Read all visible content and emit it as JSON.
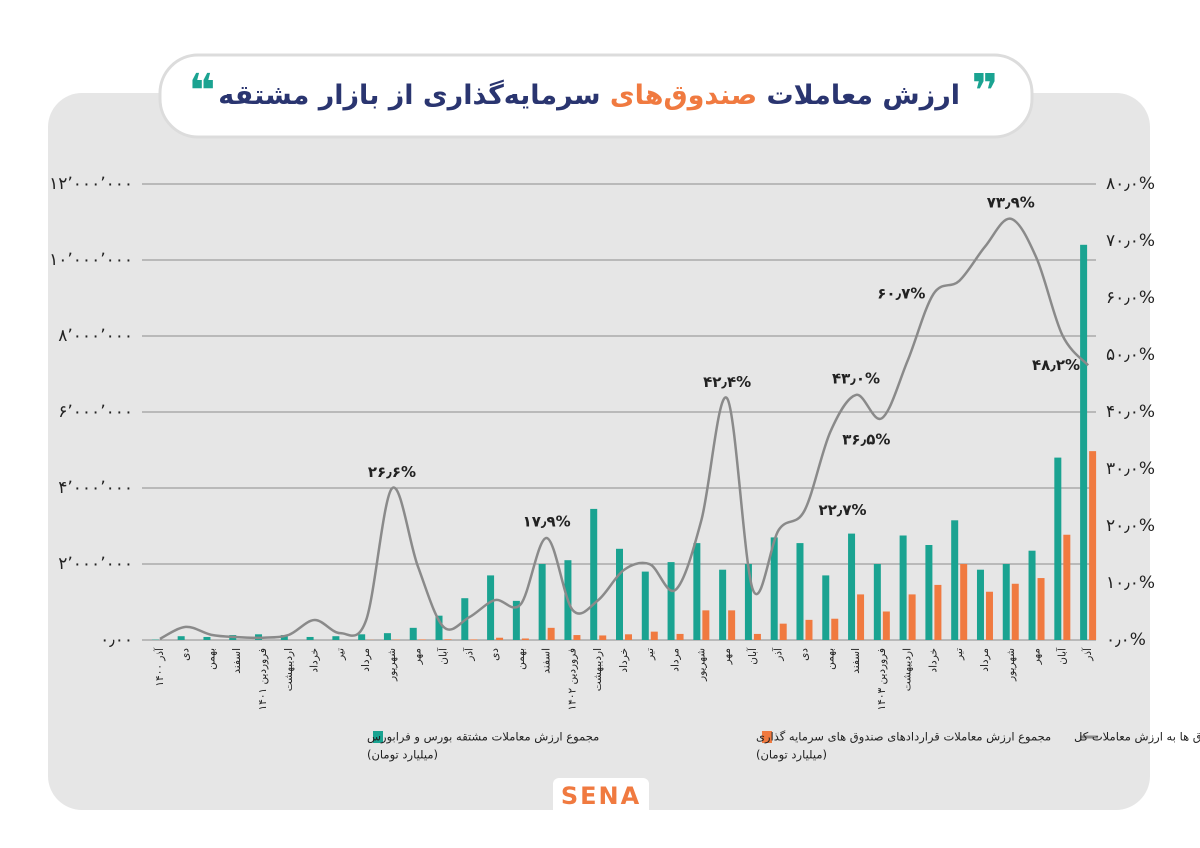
{
  "header": {
    "title": "ارزش معاملات",
    "title_highlight": "صندوق‌های",
    "title_rest": "سرمایه‌گذاری از بازار مشتقه"
  },
  "logo": {
    "text": "SENA"
  },
  "chart_data": {
    "type": "bar-line",
    "categories": [
      "آذر ۱۴۰۰",
      "دی",
      "بهمن",
      "اسفند",
      "فروردین ۱۴۰۱",
      "اردیبهشت",
      "خرداد",
      "تیر",
      "مرداد",
      "شهریور",
      "مهر",
      "آبان",
      "آذر",
      "دی",
      "بهمن",
      "اسفند",
      "فروردین ۱۴۰۲",
      "اردیبهشت",
      "خرداد",
      "تیر",
      "مرداد",
      "شهریور",
      "مهر",
      "آبان",
      "آذر",
      "دی",
      "بهمن",
      "اسفند",
      "فروردین ۱۴۰۳",
      "اردیبهشت",
      "خرداد",
      "تیر",
      "مرداد",
      "شهریور",
      "مهر",
      "آبان",
      "آذر"
    ],
    "series": [
      {
        "name": "مجموع ارزش معاملات مشتقه بورس و فرابورس",
        "unit": "(میلیارد تومان)",
        "color": "#1aa391",
        "values": [
          10000,
          100000,
          80000,
          130000,
          150000,
          130000,
          80000,
          100000,
          150000,
          180000,
          320000,
          640000,
          1100000,
          1700000,
          1030000,
          2000000,
          2100000,
          3450000,
          2400000,
          1800000,
          2050000,
          2550000,
          1850000,
          2000000,
          2700000,
          2550000,
          1700000,
          2800000,
          2000000,
          2750000,
          2500000,
          3150000,
          1850000,
          2000000,
          2350000,
          4800000,
          10400000
        ]
      },
      {
        "name": "مجموع ارزش معاملات قراردادهای صندوق های سرمایه گذاری",
        "unit": "(میلیارد تومان)",
        "color": "#f07a40",
        "values": [
          0,
          0,
          0,
          0,
          0,
          0,
          0,
          0,
          5000,
          10000,
          15000,
          20000,
          15000,
          60000,
          40000,
          320000,
          130000,
          120000,
          150000,
          220000,
          160000,
          780000,
          780000,
          160000,
          430000,
          530000,
          560000,
          1200000,
          750000,
          1200000,
          1450000,
          2000000,
          1270000,
          1480000,
          1630000,
          2770000,
          4970000
        ]
      },
      {
        "name": "نسبت ارزش معاملات صندوق ها به ارزش معاملات کل",
        "color": "#8a8a8a",
        "axis": "y2",
        "values": [
          0.2,
          2.3,
          0.9,
          0.5,
          0.4,
          0.9,
          3.5,
          1.2,
          3.5,
          26.6,
          13,
          2.3,
          4,
          7,
          6.3,
          17.9,
          5.3,
          7,
          12.3,
          13.3,
          8.8,
          21,
          42.4,
          8.8,
          19.3,
          22.7,
          36.5,
          43,
          38.9,
          49,
          60.7,
          63,
          69,
          73.9,
          67,
          53.5,
          48.2
        ],
        "value_labels": [
          null,
          null,
          null,
          null,
          null,
          null,
          null,
          null,
          null,
          "۲۶٫۶%",
          null,
          null,
          null,
          null,
          null,
          "۱۷٫۹%",
          null,
          null,
          null,
          null,
          null,
          null,
          "۴۲٫۴%",
          null,
          null,
          "۲۲٫۷%",
          "۳۶٫۵%",
          "۴۳٫۰%",
          null,
          null,
          "۶۰٫۷%",
          null,
          null,
          "۷۳٫۹%",
          null,
          null,
          "۴۸٫۲%"
        ]
      }
    ],
    "ylim": [
      0,
      12000000
    ],
    "yticks": [
      {
        "value": 0,
        "label": "۰٫۰۰"
      },
      {
        "value": 2000000,
        "label": "۲٬۰۰۰٬۰۰۰"
      },
      {
        "value": 4000000,
        "label": "۴٬۰۰۰٬۰۰۰"
      },
      {
        "value": 6000000,
        "label": "۶٬۰۰۰٬۰۰۰"
      },
      {
        "value": 8000000,
        "label": "۸٬۰۰۰٬۰۰۰"
      },
      {
        "value": 10000000,
        "label": "۱۰٬۰۰۰٬۰۰۰"
      },
      {
        "value": 12000000,
        "label": "۱۲٬۰۰۰٬۰۰۰"
      }
    ],
    "y2lim": [
      0,
      80
    ],
    "y2ticks": [
      {
        "value": 0,
        "label": "۰٫۰%"
      },
      {
        "value": 10,
        "label": "۱۰٫۰%"
      },
      {
        "value": 20,
        "label": "۲۰٫۰%"
      },
      {
        "value": 30,
        "label": "۳۰٫۰%"
      },
      {
        "value": 40,
        "label": "۴۰٫۰%"
      },
      {
        "value": 50,
        "label": "۵۰٫۰%"
      },
      {
        "value": 60,
        "label": "۶۰٫۰%"
      },
      {
        "value": 70,
        "label": "۷۰٫۰%"
      },
      {
        "value": 80,
        "label": "۸۰٫۰%"
      }
    ],
    "grid": true
  }
}
